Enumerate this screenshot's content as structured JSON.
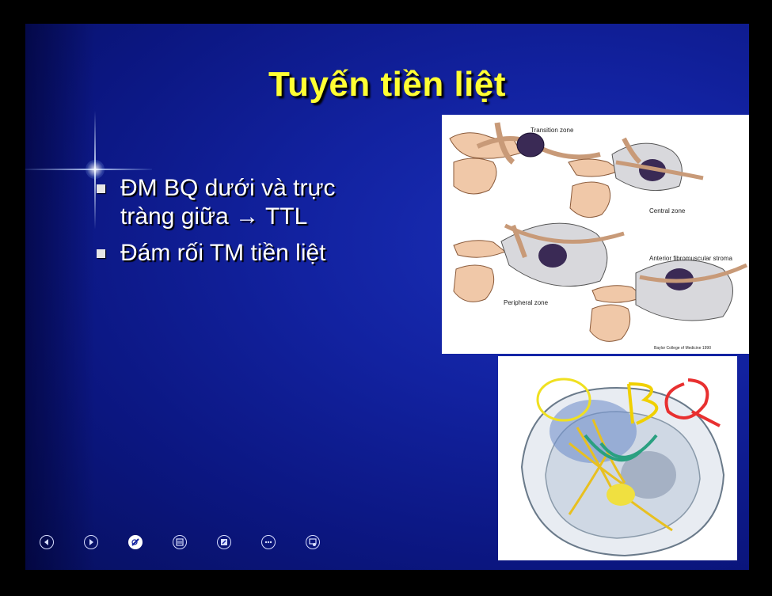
{
  "slide": {
    "title": "Tuyến tiền liệt",
    "bullets": [
      {
        "text_line1": "ĐM BQ dưới và trực",
        "text_line2": "tràng giữa → TTL"
      },
      {
        "text_line1": "Đám rối TM tiền liệt"
      }
    ]
  },
  "figure1": {
    "labels": {
      "transition": "Transition zone",
      "central": "Central zone",
      "peripheral": "Peripheral zone",
      "anterior": "Anterior fibromuscular stroma",
      "credit": "Baylor College of Medicine 1990"
    }
  },
  "figure2": {
    "annotation": "BQ"
  },
  "navigation": {
    "buttons": [
      "previous-icon",
      "next-icon",
      "pen-icon",
      "slides-icon",
      "zoom-icon",
      "more-icon",
      "presenter-icon"
    ]
  },
  "colors": {
    "title": "#ffff33",
    "background": "#1222a0",
    "text": "#ffffff"
  }
}
